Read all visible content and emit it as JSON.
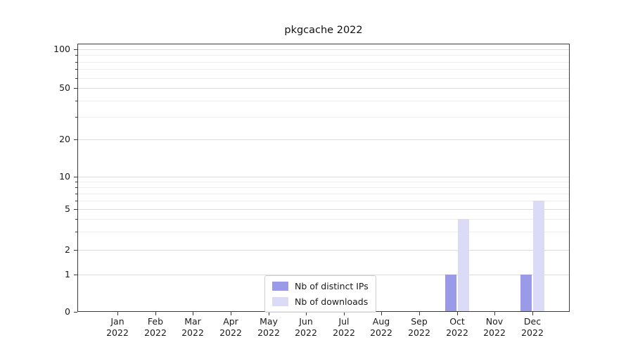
{
  "chart_data": {
    "type": "bar",
    "title": "pkgcache 2022",
    "categories": [
      "Jan",
      "Feb",
      "Mar",
      "Apr",
      "May",
      "Jun",
      "Jul",
      "Aug",
      "Sep",
      "Oct",
      "Nov",
      "Dec"
    ],
    "category_year": "2022",
    "series": [
      {
        "name": "Nb of distinct IPs",
        "color": "#9a9ae8",
        "values": [
          0,
          0,
          0,
          0,
          0,
          0,
          0,
          0,
          0,
          1,
          0,
          1
        ]
      },
      {
        "name": "Nb of downloads",
        "color": "#dbdbf8",
        "values": [
          0,
          0,
          0,
          0,
          0,
          0,
          0,
          0,
          0,
          4,
          0,
          6
        ]
      }
    ],
    "yscale": "symlog",
    "yticks": [
      0,
      1,
      2,
      5,
      10,
      20,
      50,
      100
    ],
    "minor_yticks": [
      3,
      4,
      6,
      7,
      8,
      9,
      30,
      40,
      60,
      70,
      80,
      90
    ],
    "ylim": [
      0,
      140
    ],
    "xlabel": "",
    "ylabel": "",
    "grid": "horizontal",
    "legend_position": "lower center"
  }
}
